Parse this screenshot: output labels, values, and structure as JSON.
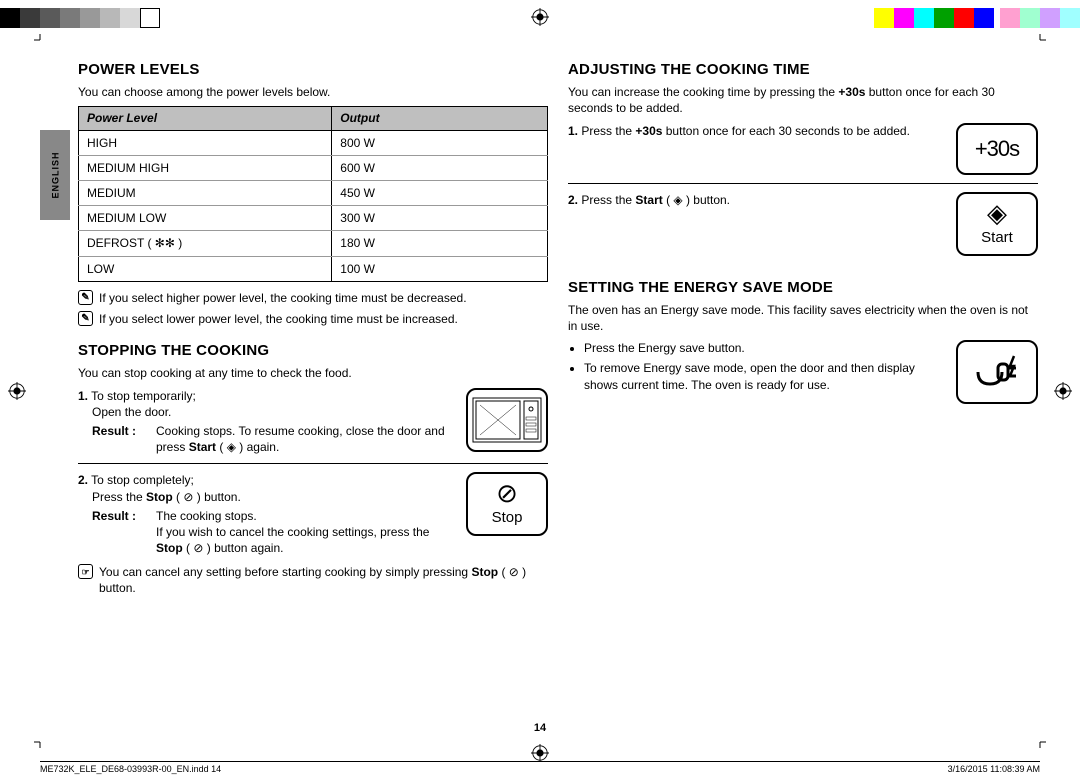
{
  "colorbar": {
    "left": [
      "#000000",
      "#3a3a3a",
      "#5a5a5a",
      "#7a7a7a",
      "#999999",
      "#b8b8b8",
      "#d8d8d8",
      "#ffffff"
    ],
    "right_a": [
      "#ffff00",
      "#ff00ff",
      "#00ffff",
      "#00a000",
      "#ff0000",
      "#0000ff"
    ],
    "right_b": [
      "#ffa0d0",
      "#a0ffd0",
      "#d0a0ff",
      "#a0ffff"
    ]
  },
  "lang_tab": "ENGLISH",
  "left_col": {
    "h_power": "POWER LEVELS",
    "p_power_intro": "You can choose among the power levels below.",
    "table": {
      "headers": [
        "Power Level",
        "Output"
      ],
      "rows": [
        [
          "HIGH",
          "800 W"
        ],
        [
          "MEDIUM HIGH",
          "600 W"
        ],
        [
          "MEDIUM",
          "450 W"
        ],
        [
          "MEDIUM LOW",
          "300 W"
        ],
        [
          "DEFROST ( ✻✻ )",
          "180 W"
        ],
        [
          "LOW",
          "100 W"
        ]
      ]
    },
    "note1": "If you select higher power level, the cooking time must be decreased.",
    "note2": "If you select lower power level, the cooking time must be increased.",
    "h_stop": "STOPPING THE COOKING",
    "p_stop_intro": "You can stop cooking at any time to check the food.",
    "step1_a": "To stop temporarily;",
    "step1_b": "Open the door.",
    "step1_result": "Cooking stops. To resume cooking, close the door and press Start ( ◈ ) again.",
    "step2_a": "To stop completely;",
    "step2_b": "Press the Stop ( ⊘ ) button.",
    "step2_result": "The cooking stops.\nIf you wish to cancel the cooking settings, press the Stop ( ⊘ ) button again.",
    "tip": "You can cancel any setting before starting cooking by simply pressing Stop ( ⊘ ) button.",
    "stop_label": "Stop",
    "result_label": "Result :"
  },
  "right_col": {
    "h_adjust": "ADJUSTING THE COOKING TIME",
    "p_adjust_intro": "You can increase the cooking time by pressing the +30s button once for each 30 seconds to be added.",
    "step1": "Press the +30s button once for each 30 seconds to be added.",
    "step2": "Press the Start ( ◈ ) button.",
    "btn_30s": "+30s",
    "start_label": "Start",
    "h_energy": "SETTING THE ENERGY SAVE MODE",
    "p_energy_intro": "The oven has an Energy save mode. This facility saves electricity when the oven is not in use.",
    "bullet1": "Press the Energy save button.",
    "bullet2": "To remove Energy save mode, open the door and then display shows current time. The oven is ready for use."
  },
  "page_number": "14",
  "footer_left": "ME732K_ELE_DE68-03993R-00_EN.indd   14",
  "footer_right": "3/16/2015   11:08:39 AM"
}
